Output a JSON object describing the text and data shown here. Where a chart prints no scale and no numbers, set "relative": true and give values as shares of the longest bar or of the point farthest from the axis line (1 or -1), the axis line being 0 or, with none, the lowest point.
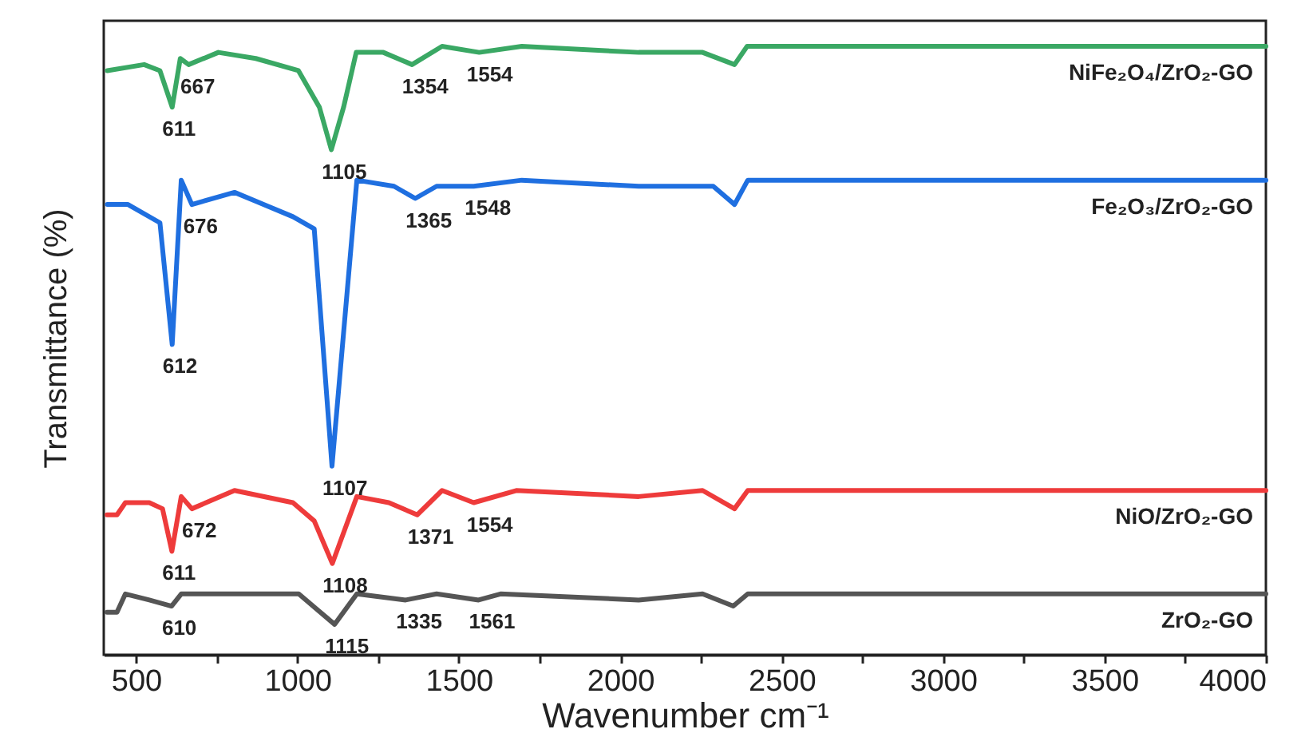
{
  "chart_data": {
    "type": "line",
    "relative": true,
    "xlabel": "Wavenumber cm⁻¹",
    "ylabel": "Transmittance (%)",
    "xlim": [
      400,
      4000
    ],
    "xticks": [
      500,
      {
        "value": 750,
        "label": null
      },
      1000,
      {
        "value": 1250,
        "label": null
      },
      1500,
      {
        "value": 1750,
        "label": null
      },
      2000,
      {
        "value": 2250,
        "label": null
      },
      2500,
      {
        "value": 2750,
        "label": null
      },
      3000,
      {
        "value": 3250,
        "label": null
      },
      3500,
      {
        "value": 3750,
        "label": null
      },
      4000
    ],
    "grid": false,
    "marker": "none",
    "line_style": "solid",
    "series": [
      {
        "name": "NiFe₂O₄/ZrO₂-GO",
        "color": "#3aa864",
        "x": [
          411,
          525,
          574,
          612,
          637,
          663,
          755,
          871,
          1003,
          1068,
          1105,
          1143,
          1182,
          1266,
          1355,
          1448,
          1563,
          1695,
          2057,
          2255,
          2354,
          2393,
          4000
        ],
        "values": [
          0.96,
          0.97,
          0.96,
          0.9,
          0.98,
          0.97,
          0.99,
          0.98,
          0.96,
          0.9,
          0.83,
          0.9,
          0.99,
          0.99,
          0.97,
          1.0,
          0.99,
          1.0,
          0.99,
          0.99,
          0.97,
          1.0,
          1.0
        ]
      },
      {
        "name": "Fe₂O₃/ZrO₂-GO",
        "color": "#1f6fe0",
        "x": [
          411,
          475,
          574,
          612,
          640,
          673,
          805,
          986,
          1052,
          1107,
          1184,
          1299,
          1365,
          1431,
          1546,
          1695,
          2057,
          2288,
          2354,
          2395,
          4000
        ],
        "values": [
          0.74,
          0.74,
          0.71,
          0.51,
          0.78,
          0.74,
          0.76,
          0.72,
          0.7,
          0.31,
          0.78,
          0.77,
          0.75,
          0.77,
          0.77,
          0.78,
          0.77,
          0.77,
          0.74,
          0.78,
          0.78
        ]
      },
      {
        "name": "NiO/ZrO₂-GO",
        "color": "#ee3b3b",
        "x": [
          410,
          441,
          467,
          541,
          582,
          611,
          640,
          673,
          805,
          986,
          1052,
          1108,
          1184,
          1283,
          1371,
          1448,
          1546,
          1678,
          2057,
          2255,
          2354,
          2395,
          4000
        ],
        "values": [
          0.23,
          0.23,
          0.25,
          0.25,
          0.24,
          0.17,
          0.26,
          0.24,
          0.27,
          0.25,
          0.22,
          0.15,
          0.26,
          0.25,
          0.23,
          0.27,
          0.25,
          0.27,
          0.26,
          0.27,
          0.24,
          0.27,
          0.27
        ]
      },
      {
        "name": "ZrO₂-GO",
        "color": "#555555",
        "x": [
          410,
          441,
          467,
          541,
          610,
          640,
          906,
          1004,
          1115,
          1184,
          1335,
          1431,
          1561,
          1629,
          2057,
          2255,
          2350,
          2395,
          3703,
          4000
        ],
        "values": [
          0.07,
          0.07,
          0.1,
          0.09,
          0.08,
          0.1,
          0.1,
          0.1,
          0.05,
          0.1,
          0.09,
          0.1,
          0.09,
          0.1,
          0.09,
          0.1,
          0.08,
          0.1,
          0.1,
          0.1
        ]
      }
    ],
    "annotations": [
      {
        "text": "611",
        "x": 611,
        "y": 0.9
      },
      {
        "text": "667",
        "x": 667,
        "y": 0.97
      },
      {
        "text": "1105",
        "x": 1105,
        "y": 0.83
      },
      {
        "text": "1354",
        "x": 1354,
        "y": 0.97
      },
      {
        "text": "1554",
        "x": 1554,
        "y": 0.99
      },
      {
        "text": "612",
        "x": 612,
        "y": 0.51
      },
      {
        "text": "676",
        "x": 676,
        "y": 0.74
      },
      {
        "text": "1107",
        "x": 1107,
        "y": 0.31
      },
      {
        "text": "1365",
        "x": 1365,
        "y": 0.75
      },
      {
        "text": "1548",
        "x": 1548,
        "y": 0.77
      },
      {
        "text": "611",
        "x": 611,
        "y": 0.17
      },
      {
        "text": "672",
        "x": 672,
        "y": 0.24
      },
      {
        "text": "1108",
        "x": 1108,
        "y": 0.15
      },
      {
        "text": "1371",
        "x": 1371,
        "y": 0.23
      },
      {
        "text": "1554",
        "x": 1554,
        "y": 0.25
      },
      {
        "text": "610",
        "x": 610,
        "y": 0.08
      },
      {
        "text": "1115",
        "x": 1115,
        "y": 0.05
      },
      {
        "text": "1335",
        "x": 1335,
        "y": 0.09
      },
      {
        "text": "1561",
        "x": 1561,
        "y": 0.09
      }
    ]
  }
}
